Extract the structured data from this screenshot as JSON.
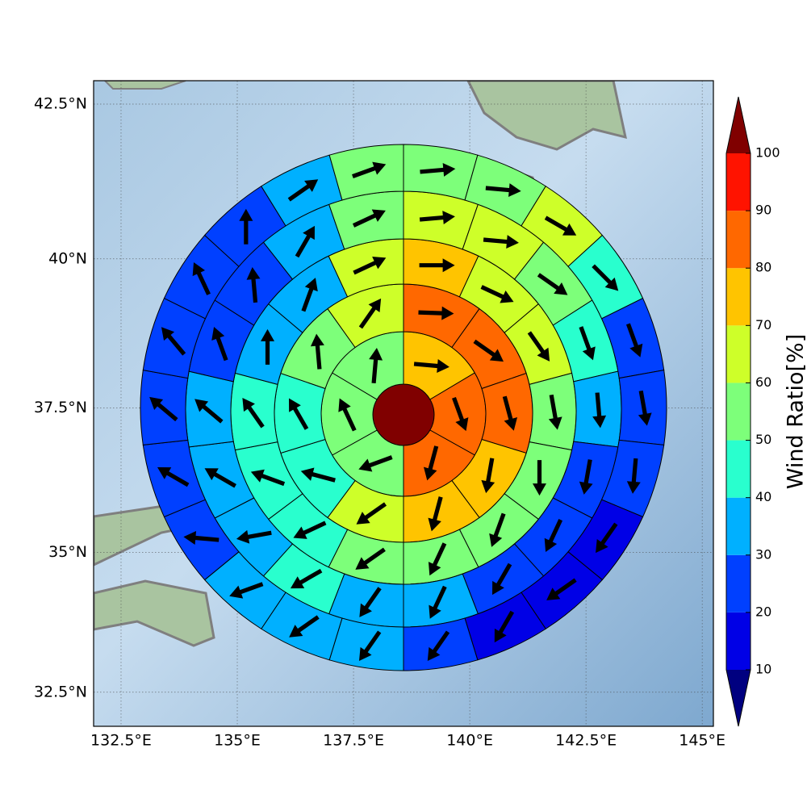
{
  "chart_data": {
    "type": "polar_grid",
    "projection": "mercator",
    "grid": true,
    "xlim": [
      131.91,
      145.24
    ],
    "ylim": [
      31.88,
      42.87
    ],
    "xticks": [
      {
        "value": 132.5,
        "label": "132.5°E"
      },
      {
        "value": 135,
        "label": "135°E"
      },
      {
        "value": 137.5,
        "label": "137.5°E"
      },
      {
        "value": 140,
        "label": "140°E"
      },
      {
        "value": 142.5,
        "label": "142.5°E"
      },
      {
        "value": 145,
        "label": "145°E"
      }
    ],
    "yticks": [
      {
        "value": 32.5,
        "label": "32.5°N"
      },
      {
        "value": 35,
        "label": "35°N"
      },
      {
        "value": 37.5,
        "label": "37.5°N"
      },
      {
        "value": 40,
        "label": "40°N"
      },
      {
        "value": 42.5,
        "label": "42.5°N"
      }
    ],
    "center_value": 100,
    "rings": [
      {
        "values": [
          75,
          85,
          85,
          55,
          55,
          55
        ],
        "directions": [
          95,
          160,
          195,
          250,
          335,
          5
        ]
      },
      {
        "values": [
          85,
          85,
          85,
          75,
          75,
          65,
          45,
          45,
          55,
          65
        ],
        "directions": [
          92,
          125,
          165,
          190,
          195,
          235,
          285,
          330,
          355,
          35
        ]
      },
      {
        "values": [
          75,
          65,
          65,
          55,
          55,
          55,
          55,
          55,
          45,
          45,
          45,
          35,
          35,
          65
        ],
        "directions": [
          90,
          115,
          145,
          170,
          180,
          200,
          205,
          235,
          245,
          290,
          325,
          360,
          20,
          65
        ]
      },
      {
        "values": [
          65,
          65,
          55,
          45,
          35,
          25,
          25,
          25,
          35,
          35,
          45,
          35,
          35,
          35,
          25,
          25,
          35,
          55
        ],
        "directions": [
          85,
          95,
          125,
          160,
          175,
          190,
          205,
          210,
          205,
          215,
          240,
          260,
          300,
          310,
          340,
          355,
          30,
          65
        ]
      },
      {
        "values": [
          55,
          55,
          65,
          45,
          25,
          25,
          25,
          15,
          15,
          15,
          25,
          35,
          35,
          35,
          25,
          25,
          25,
          25,
          25,
          25,
          35,
          55
        ],
        "directions": [
          85,
          95,
          120,
          135,
          160,
          170,
          185,
          215,
          235,
          210,
          215,
          215,
          235,
          250,
          275,
          300,
          310,
          320,
          335,
          0,
          55,
          70
        ]
      }
    ],
    "colorbar": {
      "label": "Wind Ratio[%]",
      "boundaries": [
        10,
        20,
        30,
        40,
        50,
        60,
        70,
        80,
        90,
        100
      ],
      "colors": [
        "#0000e6",
        "#0040ff",
        "#00b0ff",
        "#29ffce",
        "#7dff7a",
        "#ceff29",
        "#ffc400",
        "#ff6800",
        "#ff1300"
      ],
      "under_color": "#000080",
      "over_color": "#800000",
      "ticks": [
        10,
        20,
        30,
        40,
        50,
        60,
        70,
        80,
        90,
        100
      ]
    }
  }
}
